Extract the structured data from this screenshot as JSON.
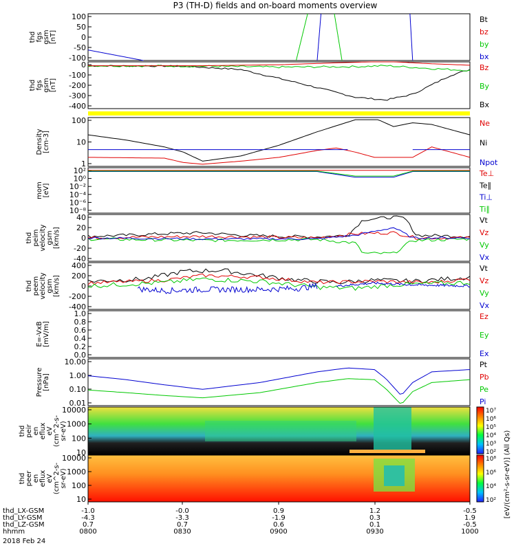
{
  "title": "P3 (TH-D) fields and on-board moments overview",
  "colors": {
    "black": "#000000",
    "red": "#e00000",
    "green": "#00c800",
    "blue": "#0000d0",
    "yellow": "#ffff00"
  },
  "footer": {
    "rows": [
      {
        "label": "thd_LX-GSM",
        "values": [
          "-1.0",
          "-0.0",
          "0.9",
          "1.2",
          "-0.5"
        ]
      },
      {
        "label": "thd_LY-GSM",
        "values": [
          "-4.3",
          "-3.3",
          "-1.9",
          "0.3",
          "1.9"
        ]
      },
      {
        "label": "thd_LZ-GSM",
        "values": [
          "0.7",
          "0.7",
          "0.6",
          "0.1",
          "-0.5"
        ]
      },
      {
        "label": "hhmm",
        "values": [
          "0800",
          "0830",
          "0900",
          "0930",
          "1000"
        ]
      }
    ],
    "date": "2018 Feb 24"
  },
  "colorbar": {
    "top": {
      "ticks": [
        "10⁷",
        "10⁶",
        "10⁵",
        "10⁴",
        "10³",
        "10²"
      ]
    },
    "bottom": {
      "ticks": [
        "10⁸",
        "10⁶",
        "10⁴",
        "10²"
      ]
    },
    "label": "[eV/(cm²-s-sr-eV)] (All Qs)"
  },
  "chart_data": [
    {
      "type": "line",
      "ylabel": [
        "thd",
        "fgs",
        "gsm",
        "[nT]"
      ],
      "yticks": [
        "100",
        "50",
        "0",
        "-50",
        "-100"
      ],
      "ylim": [
        -100,
        100
      ],
      "legend": [
        {
          "text": "Bt",
          "color": "#000000"
        },
        {
          "text": "bz",
          "color": "#e00000"
        },
        {
          "text": "by",
          "color": "#00c800"
        },
        {
          "text": "bx",
          "color": "#0000d0"
        }
      ],
      "series": [
        {
          "name": "bx",
          "color": "#0000d0",
          "x": [
            0,
            0.145
          ],
          "y": [
            -55,
            -100
          ]
        },
        {
          "name": "by",
          "color": "#00c800",
          "x": [
            0.545,
            0.575
          ],
          "y": [
            -100,
            100
          ]
        },
        {
          "name": "by",
          "color": "#00c800",
          "x": [
            0.645,
            0.665
          ],
          "y": [
            100,
            -100
          ]
        },
        {
          "name": "bx",
          "color": "#0000d0",
          "x": [
            0.6,
            0.61
          ],
          "y": [
            -100,
            100
          ]
        },
        {
          "name": "bx",
          "color": "#0000d0",
          "x": [
            0.843,
            0.85
          ],
          "y": [
            100,
            -100
          ]
        }
      ]
    },
    {
      "type": "line",
      "ylabel": [
        "thd",
        "fgs",
        "gsm",
        "[nT]"
      ],
      "yticks": [
        "0",
        "-100",
        "-200",
        "-300",
        "-400"
      ],
      "ylim": [
        -450,
        40
      ],
      "legend": [
        {
          "text": "Bz",
          "color": "#e00000"
        },
        {
          "text": "By",
          "color": "#00c800"
        },
        {
          "text": "Bx",
          "color": "#000000"
        }
      ],
      "series": [
        {
          "name": "Bx",
          "color": "#000000",
          "noise": 8,
          "x": [
            0,
            0.25,
            0.4,
            0.55,
            0.7,
            0.78,
            0.85,
            0.95,
            1
          ],
          "y": [
            0,
            -5,
            -40,
            -180,
            -330,
            -360,
            -300,
            -100,
            -40
          ]
        },
        {
          "name": "By",
          "color": "#00c800",
          "noise": 10,
          "x": [
            0,
            0.3,
            0.5,
            0.7,
            0.78,
            0.9,
            1
          ],
          "y": [
            0,
            -5,
            -15,
            -10,
            0,
            -30,
            -50
          ]
        },
        {
          "name": "Bz",
          "color": "#e00000",
          "x": [
            0,
            0.3,
            0.5,
            0.65,
            0.78,
            0.9,
            1
          ],
          "y": [
            0,
            0,
            10,
            30,
            45,
            20,
            5
          ]
        }
      ]
    },
    {
      "type": "line",
      "ylabel": [
        "Density",
        "[cm-3]"
      ],
      "yticks": [
        "100",
        "10",
        "1"
      ],
      "ylog": true,
      "ylim": [
        0.3,
        200
      ],
      "legend": [
        {
          "text": "Ne",
          "color": "#e00000"
        },
        {
          "text": "Ni",
          "color": "#000000"
        },
        {
          "text": "Npot",
          "color": "#0000d0"
        }
      ],
      "series": [
        {
          "name": "Ni",
          "color": "#000000",
          "x": [
            0,
            0.1,
            0.2,
            0.25,
            0.3,
            0.4,
            0.5,
            0.6,
            0.7,
            0.76,
            0.8,
            0.85,
            0.9,
            1
          ],
          "y": [
            20,
            10,
            4,
            2,
            0.6,
            1.2,
            5,
            30,
            150,
            150,
            60,
            100,
            80,
            20
          ]
        },
        {
          "name": "Ne",
          "color": "#e00000",
          "x": [
            0,
            0.2,
            0.25,
            0.3,
            0.4,
            0.5,
            0.6,
            0.65,
            0.7,
            0.75,
            0.85,
            0.9,
            1
          ],
          "y": [
            1,
            0.9,
            0.5,
            0.4,
            0.6,
            1,
            2.5,
            3.5,
            2,
            1,
            1,
            4,
            1
          ]
        },
        {
          "name": "Npot",
          "color": "#0000d0",
          "x": [
            0,
            0.68
          ],
          "y": [
            2.8,
            2.8
          ]
        },
        {
          "name": "Npot",
          "color": "#0000d0",
          "x": [
            0.85,
            1
          ],
          "y": [
            2.8,
            2.8
          ]
        }
      ]
    },
    {
      "type": "line",
      "ylabel": [
        "mom",
        "[eV]"
      ],
      "yticks": [
        "10²",
        "10⁰",
        "10⁻²",
        "10⁻⁴",
        "10⁻⁶",
        "10⁻⁸"
      ],
      "ylim": [
        -9,
        3
      ],
      "legend": [
        {
          "text": "Te⊥",
          "color": "#e00000"
        },
        {
          "text": "Te∥",
          "color": "#000000"
        },
        {
          "text": "Ti⊥",
          "color": "#0000d0"
        },
        {
          "text": "Ti∥",
          "color": "#00c800"
        }
      ],
      "series": [
        {
          "name": "Te⊥",
          "color": "#e00000",
          "x": [
            0,
            1
          ],
          "y": [
            2.3,
            2.3
          ]
        },
        {
          "name": "Ti⊥",
          "color": "#0000d0",
          "x": [
            0,
            0.6,
            0.7,
            0.8,
            0.85,
            1
          ],
          "y": [
            2,
            2,
            0.5,
            0.5,
            2,
            2
          ]
        },
        {
          "name": "Ti∥",
          "color": "#00c800",
          "x": [
            0,
            0.6,
            0.7,
            0.8,
            0.85,
            1
          ],
          "y": [
            2.1,
            2.1,
            0.8,
            0.8,
            2.1,
            2.1
          ]
        }
      ]
    },
    {
      "type": "line",
      "ylabel": [
        "thd",
        "peim",
        "velocity",
        "gsm",
        "[km/s]"
      ],
      "yticks": [
        "40",
        "20",
        "0",
        "-20",
        "-40"
      ],
      "ylim": [
        -45,
        45
      ],
      "legend": [
        {
          "text": "Vt",
          "color": "#000000"
        },
        {
          "text": "Vz",
          "color": "#e00000"
        },
        {
          "text": "Vy",
          "color": "#00c800"
        },
        {
          "text": "Vx",
          "color": "#0000d0"
        }
      ],
      "series": [
        {
          "name": "Vt",
          "color": "#000000",
          "noise": 3,
          "x": [
            0,
            0.1,
            0.2,
            0.3,
            0.4,
            0.5,
            0.6,
            0.68,
            0.72,
            0.8,
            0.83,
            0.86,
            1
          ],
          "y": [
            3,
            5,
            8,
            10,
            5,
            3,
            2,
            5,
            35,
            40,
            38,
            5,
            3
          ]
        },
        {
          "name": "Vz",
          "color": "#e00000",
          "noise": 3,
          "x": [
            0,
            0.3,
            0.6,
            0.7,
            0.8,
            0.86,
            1
          ],
          "y": [
            0,
            3,
            0,
            8,
            10,
            0,
            0
          ]
        },
        {
          "name": "Vy",
          "color": "#00c800",
          "noise": 3,
          "x": [
            0,
            0.3,
            0.6,
            0.7,
            0.72,
            0.8,
            0.85,
            1
          ],
          "y": [
            -2,
            -5,
            -3,
            -10,
            -30,
            -30,
            -5,
            -2
          ]
        },
        {
          "name": "Vx",
          "color": "#0000d0",
          "noise": 2,
          "x": [
            0,
            0.3,
            0.6,
            0.7,
            0.8,
            0.85,
            1
          ],
          "y": [
            0,
            -2,
            -2,
            5,
            20,
            0,
            0
          ]
        }
      ]
    },
    {
      "type": "line",
      "ylabel": [
        "thd",
        "peem",
        "velocity",
        "gsm",
        "[km/s]"
      ],
      "yticks": [
        "400",
        "200",
        "0",
        "-200",
        "-400"
      ],
      "ylim": [
        -400,
        400
      ],
      "legend": [
        {
          "text": "Vt",
          "color": "#000000"
        },
        {
          "text": "Vz",
          "color": "#e00000"
        },
        {
          "text": "Vy",
          "color": "#00c800"
        },
        {
          "text": "Vx",
          "color": "#0000d0"
        }
      ],
      "series": [
        {
          "name": "Vt",
          "color": "#000000",
          "noise": 40,
          "x": [
            0,
            0.15,
            0.25,
            0.35,
            0.45,
            0.55,
            0.65,
            0.75,
            0.85,
            1
          ],
          "y": [
            80,
            120,
            250,
            270,
            180,
            100,
            60,
            100,
            80,
            150
          ]
        },
        {
          "name": "Vz",
          "color": "#e00000",
          "noise": 30,
          "x": [
            0,
            0.2,
            0.3,
            0.45,
            0.6,
            0.75,
            0.9,
            1
          ],
          "y": [
            50,
            100,
            180,
            150,
            60,
            80,
            60,
            120
          ]
        },
        {
          "name": "Vy",
          "color": "#00c800",
          "noise": 40,
          "x": [
            0,
            0.2,
            0.3,
            0.45,
            0.6,
            0.7,
            0.8,
            1
          ],
          "y": [
            0,
            60,
            120,
            80,
            -20,
            -40,
            20,
            60
          ]
        },
        {
          "name": "Vx",
          "color": "#0000d0",
          "noise": 50,
          "x": [
            0.13,
            0.2,
            0.3,
            0.45,
            0.55,
            0.6
          ],
          "y": [
            -50,
            -80,
            -60,
            -60,
            -40,
            0
          ]
        },
        {
          "name": "Vx",
          "color": "#0000d0",
          "noise": 20,
          "x": [
            0.65,
            0.75,
            0.85,
            1
          ],
          "y": [
            0,
            50,
            20,
            0
          ]
        }
      ]
    },
    {
      "type": "line",
      "ylabel": [
        "E=-VxB",
        "[mV/m]"
      ],
      "yticks": [
        "1.0",
        "0.8",
        "0.6",
        "0.4",
        "0.2",
        "0.0"
      ],
      "ylim": [
        0,
        1
      ],
      "legend": [
        {
          "text": "Ez",
          "color": "#e00000"
        },
        {
          "text": "Ey",
          "color": "#00c800"
        },
        {
          "text": "Ex",
          "color": "#0000d0"
        }
      ],
      "series": []
    },
    {
      "type": "line",
      "ylabel": [
        "Pressure",
        "[nPa]"
      ],
      "yticks": [
        "10.00",
        "1.00",
        "0.10",
        "0.01"
      ],
      "ylog": true,
      "ylim": [
        0.005,
        20
      ],
      "legend": [
        {
          "text": "Pt",
          "color": "#000000"
        },
        {
          "text": "Pb",
          "color": "#e00000"
        },
        {
          "text": "Pe",
          "color": "#00c800"
        },
        {
          "text": "Pi",
          "color": "#0000d0"
        }
      ],
      "series": [
        {
          "name": "Pi",
          "color": "#0000d0",
          "x": [
            0,
            0.1,
            0.2,
            0.3,
            0.45,
            0.6,
            0.68,
            0.75,
            0.78,
            0.82,
            0.85,
            0.9,
            1
          ],
          "y": [
            1,
            0.5,
            0.2,
            0.09,
            0.3,
            2,
            4,
            3,
            0.6,
            0.03,
            0.3,
            2,
            3
          ]
        },
        {
          "name": "Pe",
          "color": "#00c800",
          "x": [
            0,
            0.1,
            0.2,
            0.3,
            0.45,
            0.6,
            0.68,
            0.75,
            0.78,
            0.82,
            0.85,
            0.9,
            1
          ],
          "y": [
            0.08,
            0.05,
            0.03,
            0.02,
            0.05,
            0.3,
            0.6,
            0.5,
            0.1,
            0.006,
            0.06,
            0.3,
            0.5
          ]
        }
      ]
    },
    {
      "type": "heatmap",
      "ylabel": [
        "thd",
        "peir",
        "en",
        "eflux",
        "eV",
        "(cm^2-s-",
        "sr-eV)"
      ],
      "yticks": [
        "10000",
        "1000",
        "100",
        "10"
      ]
    },
    {
      "type": "heatmap",
      "ylabel": [
        "thd",
        "peer",
        "en",
        "eflux",
        "eV",
        "(cm^2-s-",
        "sr-eV)"
      ],
      "yticks": [
        "10000",
        "1000",
        "100",
        "10"
      ]
    }
  ]
}
